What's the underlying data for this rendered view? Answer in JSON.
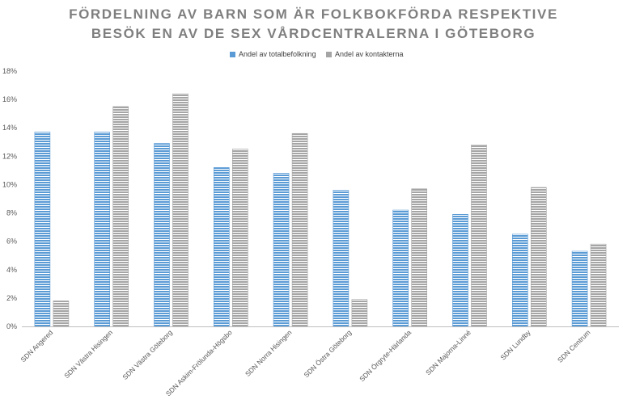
{
  "chart_data": {
    "type": "bar",
    "title_line1": "FÖRDELNING AV BARN SOM ÄR FOLKBOKFÖRDA RESPEKTIVE",
    "title_line2": "BESÖK EN AV DE SEX VÅRDCENTRALERNA I GÖTEBORG",
    "xlabel": "",
    "ylabel": "",
    "ylim": [
      0,
      18
    ],
    "yticks": [
      "0%",
      "2%",
      "4%",
      "6%",
      "8%",
      "10%",
      "12%",
      "14%",
      "16%",
      "18%"
    ],
    "grid": false,
    "legend_position": "top",
    "categories": [
      "SDN Angered",
      "SDN Västra Hisingen",
      "SDN Västra Göteborg",
      "SDN Askim-Frölunda-Högsbo",
      "SDN Norra Hisingen",
      "SDN Östra Göteborg",
      "SDN Örgryte-Härlanda",
      "SDN Majorna-Linné",
      "SDN Lundby",
      "SDN Centrum"
    ],
    "series": [
      {
        "name": "Andel av totalbefolkning",
        "color": "#5b9bd5",
        "values": [
          13.7,
          13.7,
          12.9,
          11.2,
          10.8,
          9.6,
          8.2,
          7.9,
          6.5,
          5.3
        ]
      },
      {
        "name": "Andel av kontakterna",
        "color": "#a5a5a5",
        "values": [
          1.8,
          15.5,
          16.4,
          12.5,
          13.6,
          1.9,
          9.7,
          12.8,
          9.8,
          5.8
        ]
      }
    ]
  }
}
